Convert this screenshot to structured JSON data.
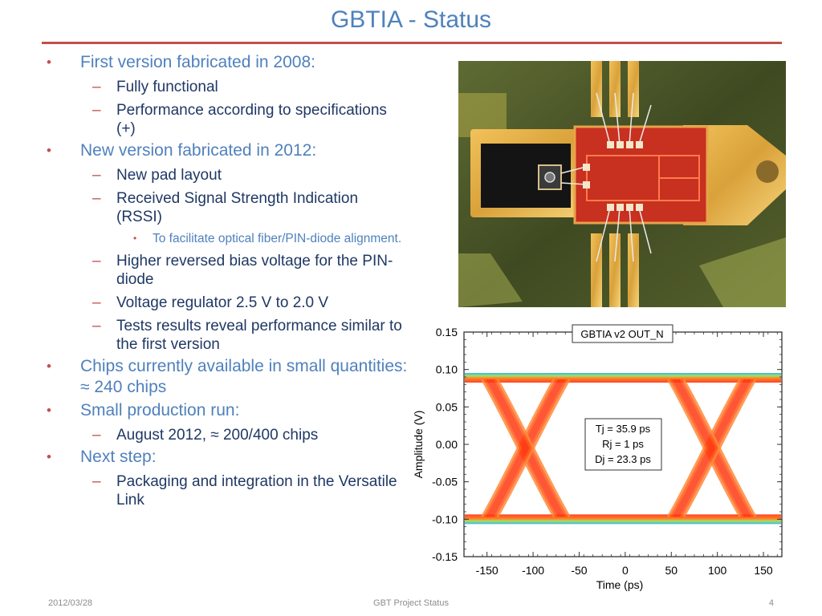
{
  "title": "GBTIA - Status",
  "bullets": [
    {
      "text": "First version fabricated in 2008:",
      "children": [
        {
          "text": "Fully functional"
        },
        {
          "text": "Performance according to specifications (+)"
        }
      ]
    },
    {
      "text": "New version fabricated in 2012:",
      "children": [
        {
          "text": "New pad layout"
        },
        {
          "text": "Received Signal Strength Indication (RSSI)",
          "children": [
            {
              "text": "To facilitate optical fiber/PIN-diode alignment."
            }
          ]
        },
        {
          "text": "Higher reversed bias voltage for the PIN-diode"
        },
        {
          "text": "Voltage regulator 2.5 V to 2.0 V"
        },
        {
          "text": "Tests results reveal performance similar to the first version"
        }
      ]
    },
    {
      "text": "Chips currently available in small quantities:  ≈ 240 chips"
    },
    {
      "text": "Small production run:",
      "children": [
        {
          "text": "August 2012, ≈ 200/400 chips"
        }
      ]
    },
    {
      "text": "Next step:",
      "children": [
        {
          "text": "Packaging and integration in the Versatile Link"
        }
      ]
    }
  ],
  "chart_data": {
    "type": "eye-diagram",
    "title": "GBTIA v2 OUT_N",
    "xlabel": "Time (ps)",
    "ylabel": "Amplitude (V)",
    "xlim": [
      -175,
      170
    ],
    "ylim": [
      -0.15,
      0.15
    ],
    "xticks": [
      "-150",
      "-100",
      "-50",
      "0",
      "50",
      "100",
      "150"
    ],
    "yticks": [
      "0.15",
      "0.10",
      "0.05",
      "0.00",
      "-0.05",
      "-0.10",
      "-0.15"
    ],
    "levels": [
      0.09,
      -0.1
    ],
    "crossings": [
      -108,
      94
    ],
    "annotations": [
      "Tj = 35.9 ps",
      "Rj = 1 ps",
      "Dj = 23.3 ps"
    ]
  },
  "footer": {
    "date": "2012/03/28",
    "center": "GBT Project Status",
    "page": "4"
  },
  "colors": {
    "title": "#4f81bd",
    "rule": "#c0504d",
    "sub_text": "#1f3864",
    "eye_main": "#ff4a1a"
  }
}
